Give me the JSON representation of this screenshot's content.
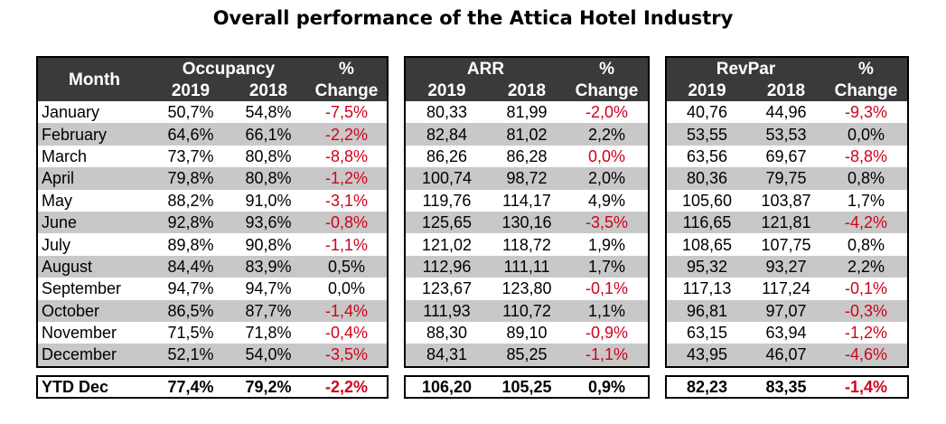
{
  "title": "Overall performance of the Attica Hotel Industry",
  "headers": {
    "month": "Month",
    "occupancy": "Occupancy",
    "arr": "ARR",
    "revpar": "RevPar",
    "pct": "%",
    "change": "Change",
    "y2019": "2019",
    "y2018": "2018"
  },
  "colors": {
    "negative": "#d0021b",
    "header_bg": "#3a3a3a",
    "stripe": "#c8c8c8"
  },
  "rows": [
    {
      "month": "January",
      "occ19": "50,7%",
      "occ18": "54,8%",
      "occch": "-7,5%",
      "arr19": "80,33",
      "arr18": "81,99",
      "arrch": "-2,0%",
      "rev19": "40,76",
      "rev18": "44,96",
      "revch": "-9,3%"
    },
    {
      "month": "February",
      "occ19": "64,6%",
      "occ18": "66,1%",
      "occch": "-2,2%",
      "arr19": "82,84",
      "arr18": "81,02",
      "arrch": "2,2%",
      "rev19": "53,55",
      "rev18": "53,53",
      "revch": "0,0%"
    },
    {
      "month": "March",
      "occ19": "73,7%",
      "occ18": "80,8%",
      "occch": "-8,8%",
      "arr19": "86,26",
      "arr18": "86,28",
      "arrch": "0,0%",
      "rev19": "63,56",
      "rev18": "69,67",
      "revch": "-8,8%"
    },
    {
      "month": "April",
      "occ19": "79,8%",
      "occ18": "80,8%",
      "occch": "-1,2%",
      "arr19": "100,74",
      "arr18": "98,72",
      "arrch": "2,0%",
      "rev19": "80,36",
      "rev18": "79,75",
      "revch": "0,8%"
    },
    {
      "month": "May",
      "occ19": "88,2%",
      "occ18": "91,0%",
      "occch": "-3,1%",
      "arr19": "119,76",
      "arr18": "114,17",
      "arrch": "4,9%",
      "rev19": "105,60",
      "rev18": "103,87",
      "revch": "1,7%"
    },
    {
      "month": "June",
      "occ19": "92,8%",
      "occ18": "93,6%",
      "occch": "-0,8%",
      "arr19": "125,65",
      "arr18": "130,16",
      "arrch": "-3,5%",
      "rev19": "116,65",
      "rev18": "121,81",
      "revch": "-4,2%"
    },
    {
      "month": "July",
      "occ19": "89,8%",
      "occ18": "90,8%",
      "occch": "-1,1%",
      "arr19": "121,02",
      "arr18": "118,72",
      "arrch": "1,9%",
      "rev19": "108,65",
      "rev18": "107,75",
      "revch": "0,8%"
    },
    {
      "month": "August",
      "occ19": "84,4%",
      "occ18": "83,9%",
      "occch": "0,5%",
      "arr19": "112,96",
      "arr18": "111,11",
      "arrch": "1,7%",
      "rev19": "95,32",
      "rev18": "93,27",
      "revch": "2,2%"
    },
    {
      "month": "September",
      "occ19": "94,7%",
      "occ18": "94,7%",
      "occch": "0,0%",
      "arr19": "123,67",
      "arr18": "123,80",
      "arrch": "-0,1%",
      "rev19": "117,13",
      "rev18": "117,24",
      "revch": "-0,1%"
    },
    {
      "month": "October",
      "occ19": "86,5%",
      "occ18": "87,7%",
      "occch": "-1,4%",
      "arr19": "111,93",
      "arr18": "110,72",
      "arrch": "1,1%",
      "rev19": "96,81",
      "rev18": "97,07",
      "revch": "-0,3%"
    },
    {
      "month": "November",
      "occ19": "71,5%",
      "occ18": "71,8%",
      "occch": "-0,4%",
      "arr19": "88,30",
      "arr18": "89,10",
      "arrch": "-0,9%",
      "rev19": "63,15",
      "rev18": "63,94",
      "revch": "-1,2%"
    },
    {
      "month": "December",
      "occ19": "52,1%",
      "occ18": "54,0%",
      "occch": "-3,5%",
      "arr19": "84,31",
      "arr18": "85,25",
      "arrch": "-1,1%",
      "rev19": "43,95",
      "rev18": "46,07",
      "revch": "-4,6%"
    }
  ],
  "ytd": {
    "month": "YTD Dec",
    "occ19": "77,4%",
    "occ18": "79,2%",
    "occch": "-2,2%",
    "arr19": "106,20",
    "arr18": "105,25",
    "arrch": "0,9%",
    "rev19": "82,23",
    "rev18": "83,35",
    "revch": "-1,4%"
  },
  "red_cells": {
    "occch": [
      0,
      1,
      2,
      3,
      4,
      5,
      6,
      9,
      10,
      11
    ],
    "arrch": [
      0,
      2,
      5,
      8,
      10,
      11
    ],
    "revch": [
      0,
      2,
      5,
      8,
      9,
      10,
      11
    ]
  },
  "ytd_red": [
    "occch",
    "revch"
  ]
}
